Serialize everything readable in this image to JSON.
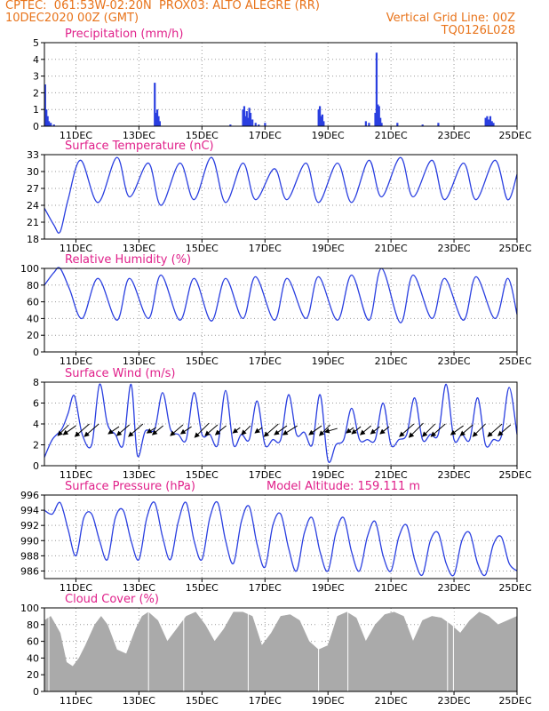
{
  "header": {
    "line1_left": "CPTEC:  061:53W-02:20N  PROX03: ALTO ALEGRE (RR)",
    "line2_left": "10DEC2020 00Z (GMT)",
    "line2_right": "Vertical Grid Line: 00Z",
    "line3_right": "TQ0126L028"
  },
  "x_axis": {
    "tick_labels": [
      "11DEC",
      "13DEC",
      "15DEC",
      "17DEC",
      "19DEC",
      "21DEC",
      "23DEC",
      "25DEC"
    ],
    "tick_days": [
      1,
      3,
      5,
      7,
      9,
      11,
      13,
      15
    ],
    "range_days": [
      0,
      15
    ]
  },
  "colors": {
    "series": "#2a3fe0",
    "title": "#e0208a",
    "header": "#e8731a",
    "cloud": "#aaaaaa",
    "grid": "#999999"
  },
  "chart_data": [
    {
      "type": "bar",
      "title": "Precipitation (mm/h)",
      "ylim": [
        0,
        5
      ],
      "yticks": [
        0,
        1,
        2,
        3,
        4,
        5
      ],
      "x": [
        0.02,
        0.06,
        0.1,
        0.14,
        0.2,
        0.3,
        3.5,
        3.54,
        3.58,
        3.62,
        3.66,
        5.9,
        6.3,
        6.34,
        6.38,
        6.42,
        6.46,
        6.5,
        6.54,
        6.6,
        6.7,
        6.8,
        7.0,
        8.7,
        8.74,
        8.78,
        8.82,
        8.86,
        10.2,
        10.3,
        10.5,
        10.54,
        10.58,
        10.62,
        10.66,
        10.7,
        11.2,
        12.0,
        12.5,
        14.0,
        14.05,
        14.1,
        14.15,
        14.2,
        14.25
      ],
      "values": [
        2.5,
        1.0,
        0.6,
        0.3,
        0.2,
        0.1,
        2.6,
        0.8,
        1.0,
        0.6,
        0.3,
        0.1,
        1.0,
        1.2,
        0.6,
        0.9,
        0.5,
        1.1,
        0.8,
        0.4,
        0.2,
        0.1,
        0.2,
        1.0,
        1.2,
        0.6,
        0.7,
        0.3,
        0.3,
        0.2,
        0.8,
        4.4,
        1.3,
        1.2,
        0.5,
        0.2,
        0.2,
        0.1,
        0.2,
        0.5,
        0.6,
        0.4,
        0.6,
        0.3,
        0.2
      ]
    },
    {
      "type": "line",
      "title": "Surface Temperature (nC)",
      "ylim": [
        18,
        33
      ],
      "yticks": [
        18,
        21,
        24,
        27,
        30,
        33
      ],
      "x": [
        0,
        0.3,
        0.5,
        0.75,
        1.15,
        1.7,
        2.3,
        2.7,
        3.3,
        3.7,
        4.3,
        4.75,
        5.3,
        5.75,
        6.3,
        6.7,
        7.3,
        7.7,
        8.3,
        8.7,
        9.3,
        9.75,
        10.3,
        10.7,
        11.3,
        11.7,
        12.3,
        12.7,
        13.3,
        13.7,
        14.3,
        14.7,
        15
      ],
      "values": [
        23.5,
        20.5,
        19.3,
        25,
        32,
        24.5,
        32.5,
        25.5,
        31.5,
        24,
        31.5,
        25,
        32.5,
        24.5,
        31.5,
        25,
        30.5,
        25,
        31.5,
        24.5,
        31.5,
        24.5,
        32,
        25.5,
        32.5,
        25.5,
        32,
        25,
        31.5,
        25,
        32,
        25,
        29.5
      ]
    },
    {
      "type": "line",
      "title": "Relative Humidity (%)",
      "ylim": [
        0,
        100
      ],
      "yticks": [
        0,
        20,
        40,
        60,
        80,
        100
      ],
      "x": [
        0,
        0.3,
        0.5,
        0.8,
        1.2,
        1.7,
        2.3,
        2.7,
        3.3,
        3.7,
        4.3,
        4.75,
        5.3,
        5.75,
        6.3,
        6.7,
        7.3,
        7.7,
        8.3,
        8.7,
        9.3,
        9.75,
        10.3,
        10.7,
        11.3,
        11.7,
        12.3,
        12.7,
        13.3,
        13.7,
        14.3,
        14.7,
        15
      ],
      "values": [
        80,
        95,
        100,
        75,
        40,
        88,
        38,
        88,
        40,
        92,
        38,
        88,
        37,
        88,
        40,
        90,
        38,
        88,
        40,
        90,
        38,
        92,
        38,
        100,
        35,
        92,
        40,
        88,
        38,
        90,
        40,
        88,
        45
      ]
    },
    {
      "type": "line",
      "title": "Surface Wind (m/s)",
      "ylim": [
        0,
        8
      ],
      "yticks": [
        0,
        2,
        4,
        6,
        8
      ],
      "x": [
        0,
        0.25,
        0.55,
        0.75,
        0.95,
        1.2,
        1.5,
        1.75,
        2,
        2.25,
        2.5,
        2.75,
        2.95,
        3.2,
        3.5,
        3.75,
        4,
        4.25,
        4.5,
        4.75,
        5,
        5.25,
        5.5,
        5.75,
        6,
        6.25,
        6.5,
        6.75,
        7,
        7.25,
        7.5,
        7.75,
        8,
        8.25,
        8.5,
        8.75,
        9,
        9.25,
        9.5,
        9.75,
        10,
        10.25,
        10.5,
        10.75,
        11,
        11.25,
        11.5,
        11.75,
        12,
        12.25,
        12.5,
        12.75,
        13,
        13.25,
        13.5,
        13.75,
        14,
        14.25,
        14.5,
        14.75,
        15
      ],
      "values": [
        0.8,
        2.5,
        3.5,
        5,
        6.7,
        3,
        2,
        7.8,
        4,
        3,
        2,
        7.8,
        1,
        3.3,
        3.5,
        7,
        3.5,
        3,
        2.5,
        7,
        3,
        3,
        2,
        7.2,
        2,
        3,
        2.5,
        6.2,
        2,
        2.5,
        2.5,
        6.8,
        3,
        3.2,
        2,
        6.8,
        0.5,
        2,
        2.5,
        5.5,
        2.5,
        2.5,
        2.5,
        6,
        2,
        2.5,
        3,
        6.5,
        2.5,
        3,
        3,
        7.8,
        2.5,
        3,
        2.5,
        6.5,
        2,
        2.5,
        2.8,
        7.5,
        3
      ]
    },
    {
      "type": "line",
      "title": "Surface Pressure (hPa)",
      "annotation": "Model Altitude: 159.111 m",
      "ylim": [
        985,
        996
      ],
      "yticks": [
        986,
        988,
        990,
        992,
        994,
        996
      ],
      "x": [
        0,
        0.25,
        0.5,
        0.75,
        1,
        1.25,
        1.5,
        1.75,
        2,
        2.25,
        2.5,
        2.75,
        3,
        3.25,
        3.5,
        3.75,
        4,
        4.25,
        4.5,
        4.75,
        5,
        5.25,
        5.5,
        5.75,
        6,
        6.25,
        6.5,
        6.75,
        7,
        7.25,
        7.5,
        7.75,
        8,
        8.25,
        8.5,
        8.75,
        9,
        9.25,
        9.5,
        9.75,
        10,
        10.25,
        10.5,
        10.75,
        11,
        11.25,
        11.5,
        11.75,
        12,
        12.25,
        12.5,
        12.75,
        13,
        13.25,
        13.5,
        13.75,
        14,
        14.25,
        14.5,
        14.75,
        15
      ],
      "values": [
        994,
        993.5,
        995,
        991.5,
        988,
        993,
        993.5,
        990,
        987.5,
        993,
        994,
        990,
        987.5,
        993,
        995,
        990.5,
        987.5,
        992.5,
        995,
        990,
        987.5,
        993,
        995,
        990,
        987,
        992.5,
        994.5,
        989.5,
        986.5,
        992,
        993.5,
        989,
        986,
        991,
        993,
        988.5,
        986,
        991,
        993,
        988.5,
        986,
        990.5,
        992.5,
        988,
        986,
        990.5,
        992,
        987.5,
        985.5,
        990,
        991,
        987,
        985.5,
        990,
        991,
        987,
        985.5,
        989.5,
        990.5,
        987,
        986
      ]
    },
    {
      "type": "area",
      "title": "Cloud Cover (%)",
      "ylim": [
        0,
        100
      ],
      "yticks": [
        0,
        20,
        40,
        60,
        80,
        100
      ],
      "x": [
        0,
        0.2,
        0.5,
        0.7,
        0.9,
        1.1,
        1.3,
        1.6,
        1.8,
        2,
        2.3,
        2.6,
        2.9,
        3.1,
        3.3,
        3.6,
        3.9,
        4.2,
        4.5,
        4.8,
        5.1,
        5.4,
        5.7,
        6,
        6.3,
        6.6,
        6.9,
        7.2,
        7.5,
        7.8,
        8.1,
        8.4,
        8.7,
        9,
        9.3,
        9.6,
        9.9,
        10.2,
        10.5,
        10.8,
        11.1,
        11.4,
        11.7,
        12,
        12.3,
        12.6,
        12.9,
        13.2,
        13.5,
        13.8,
        14.1,
        14.4,
        14.7,
        15
      ],
      "values": [
        85,
        90,
        70,
        35,
        30,
        40,
        55,
        80,
        90,
        80,
        50,
        45,
        75,
        90,
        95,
        85,
        60,
        75,
        90,
        95,
        80,
        60,
        75,
        95,
        95,
        90,
        55,
        70,
        90,
        92,
        85,
        60,
        50,
        55,
        90,
        95,
        88,
        60,
        80,
        92,
        95,
        90,
        60,
        85,
        90,
        88,
        80,
        70,
        85,
        95,
        90,
        80,
        85,
        90
      ]
    }
  ],
  "wind_arrows": [
    {
      "x": 0.6,
      "dx": 12,
      "dy": -12
    },
    {
      "x": 0.8,
      "dx": 14,
      "dy": -10
    },
    {
      "x": 1.2,
      "dx": 16,
      "dy": -14
    },
    {
      "x": 1.5,
      "dx": 16,
      "dy": -14
    },
    {
      "x": 2.2,
      "dx": 12,
      "dy": -8
    },
    {
      "x": 2.5,
      "dx": 14,
      "dy": -12
    },
    {
      "x": 2.9,
      "dx": 16,
      "dy": -14
    },
    {
      "x": 3.4,
      "dx": 10,
      "dy": -6
    },
    {
      "x": 3.6,
      "dx": 12,
      "dy": -10
    },
    {
      "x": 4.2,
      "dx": 14,
      "dy": -12
    },
    {
      "x": 4.5,
      "dx": 12,
      "dy": -8
    },
    {
      "x": 5,
      "dx": 16,
      "dy": -16
    },
    {
      "x": 5.3,
      "dx": 14,
      "dy": -12
    },
    {
      "x": 5.6,
      "dx": 12,
      "dy": -10
    },
    {
      "x": 6.1,
      "dx": 8,
      "dy": -6
    },
    {
      "x": 6.4,
      "dx": 10,
      "dy": -10
    },
    {
      "x": 6.8,
      "dx": 8,
      "dy": -6
    },
    {
      "x": 7.2,
      "dx": 16,
      "dy": -14
    },
    {
      "x": 7.5,
      "dx": 14,
      "dy": -10
    },
    {
      "x": 7.8,
      "dx": 16,
      "dy": -10
    },
    {
      "x": 8.6,
      "dx": 14,
      "dy": -10
    },
    {
      "x": 8.9,
      "dx": 12,
      "dy": -12
    },
    {
      "x": 9.1,
      "dx": 14,
      "dy": -4
    },
    {
      "x": 9.7,
      "dx": 8,
      "dy": -6
    },
    {
      "x": 9.9,
      "dx": 10,
      "dy": -8
    },
    {
      "x": 10.2,
      "dx": 12,
      "dy": -10
    },
    {
      "x": 10.5,
      "dx": 10,
      "dy": -8
    },
    {
      "x": 10.8,
      "dx": 10,
      "dy": -8
    },
    {
      "x": 11.5,
      "dx": 16,
      "dy": -14
    },
    {
      "x": 11.8,
      "dx": 16,
      "dy": -16
    },
    {
      "x": 12.2,
      "dx": 14,
      "dy": -14
    },
    {
      "x": 12.5,
      "dx": 16,
      "dy": -14
    },
    {
      "x": 13.1,
      "dx": 14,
      "dy": -10
    },
    {
      "x": 13.4,
      "dx": 14,
      "dy": -12
    },
    {
      "x": 13.8,
      "dx": 14,
      "dy": -14
    },
    {
      "x": 14.3,
      "dx": 16,
      "dy": -14
    },
    {
      "x": 14.6,
      "dx": 14,
      "dy": -12
    }
  ]
}
